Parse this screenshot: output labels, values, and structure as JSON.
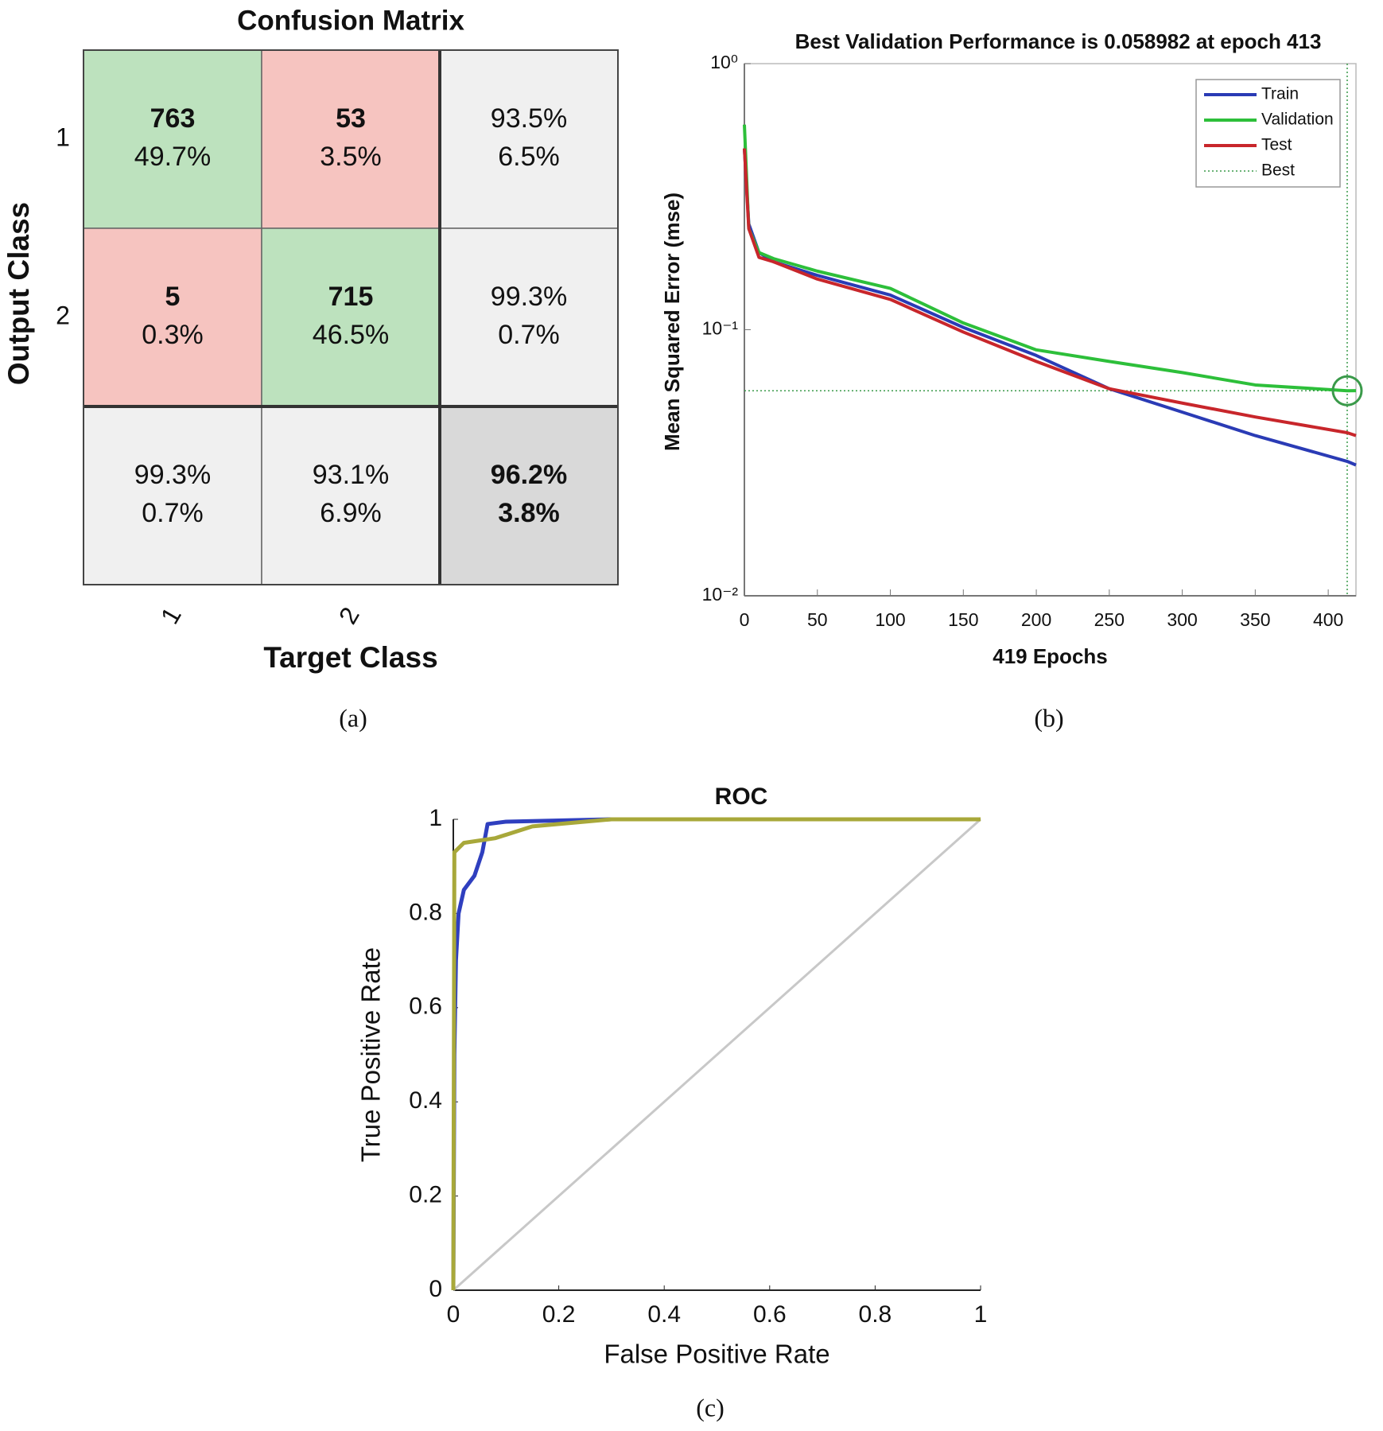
{
  "chart_data": [
    {
      "type": "confusion_matrix",
      "title": "Confusion Matrix",
      "xlabel": "Target Class",
      "ylabel": "Output Class",
      "caption": "(a)",
      "classes": [
        "1",
        "2"
      ],
      "counts": [
        [
          763,
          53
        ],
        [
          5,
          715
        ]
      ],
      "percents": [
        [
          49.7,
          3.5
        ],
        [
          0.3,
          46.5
        ]
      ],
      "percent_labels": [
        [
          "49.7%",
          "3.5%"
        ],
        [
          "0.3%",
          "46.5%"
        ]
      ],
      "row_summary": {
        "correct": [
          93.5,
          99.3
        ],
        "correct_labels": [
          "93.5%",
          "99.3%"
        ],
        "error": [
          6.5,
          0.7
        ],
        "error_labels": [
          "6.5%",
          "0.7%"
        ]
      },
      "col_summary": {
        "correct": [
          99.3,
          93.1
        ],
        "correct_labels": [
          "99.3%",
          "93.1%"
        ],
        "error": [
          0.7,
          6.9
        ],
        "error_labels": [
          "0.7%",
          "6.9%"
        ]
      },
      "total": {
        "correct": 96.2,
        "correct_label": "96.2%",
        "error": 3.8,
        "error_label": "3.8%"
      },
      "colors": {
        "correct": "#bde2be",
        "incorrect": "#f6c4c0",
        "summary": "#f0f0f0",
        "total": "#d9d9d9",
        "correct_text": "#4caf50",
        "error_text": "#d9534f"
      }
    },
    {
      "type": "line",
      "title": "Best Validation Performance is 0.058982 at epoch 413",
      "xlabel": "419 Epochs",
      "ylabel": "Mean Squared Error  (mse)",
      "caption": "(b)",
      "log_y": true,
      "legend": "upper right",
      "x": [
        0,
        3,
        10,
        20,
        50,
        100,
        150,
        200,
        250,
        300,
        350,
        413,
        419
      ],
      "series": [
        {
          "name": "Train",
          "color": "#2a3bb5",
          "values": [
            0.48,
            0.25,
            0.195,
            0.18,
            0.16,
            0.135,
            0.102,
            0.08,
            0.06,
            0.049,
            0.04,
            0.032,
            0.031
          ]
        },
        {
          "name": "Validation",
          "color": "#2dbf3a",
          "values": [
            0.59,
            0.24,
            0.195,
            0.185,
            0.166,
            0.143,
            0.106,
            0.084,
            0.076,
            0.069,
            0.062,
            0.058982,
            0.059
          ]
        },
        {
          "name": "Test",
          "color": "#c8262b",
          "values": [
            0.48,
            0.24,
            0.187,
            0.18,
            0.155,
            0.13,
            0.098,
            0.076,
            0.06,
            0.053,
            0.047,
            0.041,
            0.04
          ]
        }
      ],
      "best": {
        "name": "Best",
        "x": 413,
        "y": 0.058982,
        "color": "#3a9a4a"
      },
      "xlim": [
        0,
        419
      ],
      "xticks": [
        0,
        50,
        100,
        150,
        200,
        250,
        300,
        350,
        400
      ],
      "ylim": [
        0.01,
        1
      ],
      "yticks": [
        {
          "value": 0.01,
          "label": "10⁻²"
        },
        {
          "value": 0.1,
          "label": "10⁻¹"
        },
        {
          "value": 1,
          "label": "10⁰"
        }
      ]
    },
    {
      "type": "roc",
      "title": "ROC",
      "xlabel": "False Positive Rate",
      "ylabel": "True Positive Rate",
      "caption": "(c)",
      "series": [
        {
          "color": "#c8c8c8",
          "x": [
            0,
            1
          ],
          "values": [
            0,
            1
          ]
        },
        {
          "color": "#2f3fbf",
          "x": [
            0,
            0.002,
            0.005,
            0.01,
            0.02,
            0.04,
            0.055,
            0.065,
            0.1,
            0.3,
            1
          ],
          "values": [
            0,
            0.5,
            0.7,
            0.8,
            0.85,
            0.88,
            0.93,
            0.99,
            0.995,
            1,
            1
          ]
        },
        {
          "color": "#a8a83a",
          "x": [
            0,
            0.002,
            0.02,
            0.08,
            0.15,
            0.3,
            1
          ],
          "values": [
            0,
            0.93,
            0.95,
            0.96,
            0.985,
            1,
            1
          ]
        }
      ],
      "xlim": [
        0,
        1
      ],
      "xticks": [
        0,
        0.2,
        0.4,
        0.6,
        0.8,
        1
      ],
      "ylim": [
        0,
        1
      ],
      "yticks": [
        0,
        0.2,
        0.4,
        0.6,
        0.8,
        1
      ]
    }
  ]
}
